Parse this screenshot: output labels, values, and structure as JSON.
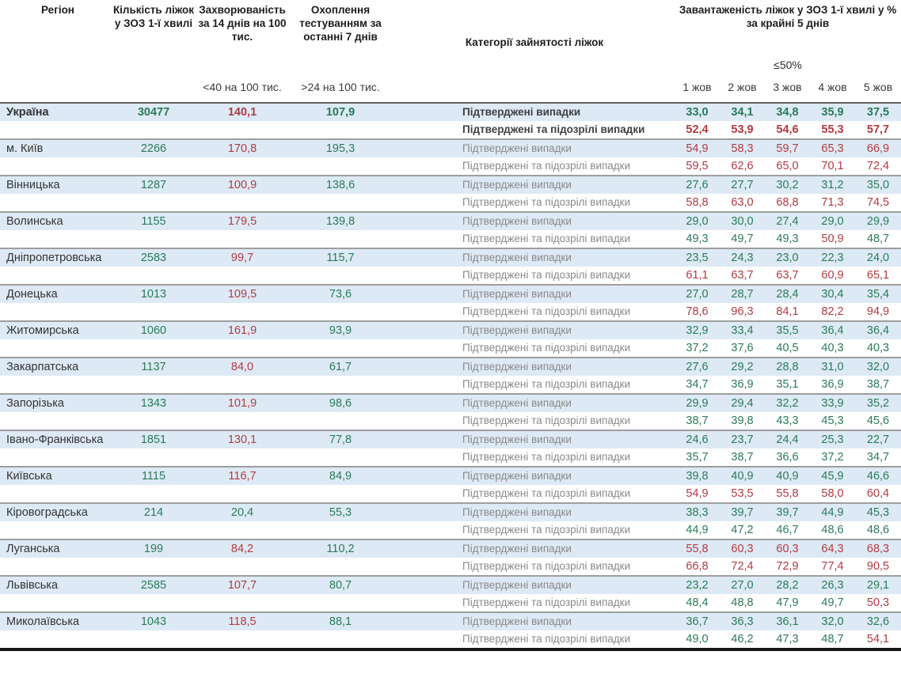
{
  "colors": {
    "green": "#2b7a57",
    "red": "#b23a40",
    "row_stripe_blue": "#ddeaf5"
  },
  "header": {
    "region": "Регіон",
    "beds": "Кількість ліжок у ЗОЗ 1-ї хвилі",
    "incidence": "Захворюваність за 14 днів на 100 тис.",
    "testing": "Охоплення тестуванням за останні 7 днів",
    "categories": "Категорії зайнятості ліжок",
    "load_title": "Завантаженість ліжок у ЗОЗ 1-ї хвилі у % за крайні 5 днів",
    "threshold": "≤50%",
    "incidence_criteria": "<40 на 100 тис.",
    "testing_criteria": ">24 на 100 тис.",
    "dates": [
      "1 жов",
      "2 жов",
      "3 жов",
      "4 жов",
      "5 жов"
    ]
  },
  "row_labels": {
    "confirmed": "Підтверджені випадки",
    "confirmed_suspected": "Підтверджені та підозрілі випадки"
  },
  "rules": {
    "load_red_above_percent": 50,
    "incidence_green_below": 40,
    "testing_green_above": 24
  },
  "chart_data": {
    "type": "table",
    "dates": [
      "1 жов",
      "2 жов",
      "3 жов",
      "4 жов",
      "5 жов"
    ],
    "regions": [
      {
        "name": "Україна",
        "bold": true,
        "beds": "30477",
        "incidence": "140,1",
        "testing": "107,9",
        "confirmed": [
          "33,0",
          "34,1",
          "34,8",
          "35,9",
          "37,5"
        ],
        "confirmed_suspected": [
          "52,4",
          "53,9",
          "54,6",
          "55,3",
          "57,7"
        ]
      },
      {
        "name": "м. Київ",
        "bold": false,
        "beds": "2266",
        "incidence": "170,8",
        "testing": "195,3",
        "confirmed": [
          "54,9",
          "58,3",
          "59,7",
          "65,3",
          "66,9"
        ],
        "confirmed_suspected": [
          "59,5",
          "62,6",
          "65,0",
          "70,1",
          "72,4"
        ]
      },
      {
        "name": "Вінницька",
        "bold": false,
        "beds": "1287",
        "incidence": "100,9",
        "testing": "138,6",
        "confirmed": [
          "27,6",
          "27,7",
          "30,2",
          "31,2",
          "35,0"
        ],
        "confirmed_suspected": [
          "58,8",
          "63,0",
          "68,8",
          "71,3",
          "74,5"
        ]
      },
      {
        "name": "Волинська",
        "bold": false,
        "beds": "1155",
        "incidence": "179,5",
        "testing": "139,8",
        "confirmed": [
          "29,0",
          "30,0",
          "27,4",
          "29,0",
          "29,9"
        ],
        "confirmed_suspected": [
          "49,3",
          "49,7",
          "49,3",
          "50,9",
          "48,7"
        ]
      },
      {
        "name": "Дніпропетровська",
        "bold": false,
        "beds": "2583",
        "incidence": "99,7",
        "testing": "115,7",
        "confirmed": [
          "23,5",
          "24,3",
          "23,0",
          "22,3",
          "24,0"
        ],
        "confirmed_suspected": [
          "61,1",
          "63,7",
          "63,7",
          "60,9",
          "65,1"
        ]
      },
      {
        "name": "Донецька",
        "bold": false,
        "beds": "1013",
        "incidence": "109,5",
        "testing": "73,6",
        "confirmed": [
          "27,0",
          "28,7",
          "28,4",
          "30,4",
          "35,4"
        ],
        "confirmed_suspected": [
          "78,6",
          "96,3",
          "84,1",
          "82,2",
          "94,9"
        ]
      },
      {
        "name": "Житомирська",
        "bold": false,
        "beds": "1060",
        "incidence": "161,9",
        "testing": "93,9",
        "confirmed": [
          "32,9",
          "33,4",
          "35,5",
          "36,4",
          "36,4"
        ],
        "confirmed_suspected": [
          "37,2",
          "37,6",
          "40,5",
          "40,3",
          "40,3"
        ]
      },
      {
        "name": "Закарпатська",
        "bold": false,
        "beds": "1137",
        "incidence": "84,0",
        "testing": "61,7",
        "confirmed": [
          "27,6",
          "29,2",
          "28,8",
          "31,0",
          "32,0"
        ],
        "confirmed_suspected": [
          "34,7",
          "36,9",
          "35,1",
          "36,9",
          "38,7"
        ]
      },
      {
        "name": "Запорізька",
        "bold": false,
        "beds": "1343",
        "incidence": "101,9",
        "testing": "98,6",
        "confirmed": [
          "29,9",
          "29,4",
          "32,2",
          "33,9",
          "35,2"
        ],
        "confirmed_suspected": [
          "38,7",
          "39,8",
          "43,3",
          "45,3",
          "45,6"
        ]
      },
      {
        "name": "Івано-Франківська",
        "bold": false,
        "beds": "1851",
        "incidence": "130,1",
        "testing": "77,8",
        "confirmed": [
          "24,6",
          "23,7",
          "24,4",
          "25,3",
          "22,7"
        ],
        "confirmed_suspected": [
          "35,7",
          "38,7",
          "36,6",
          "37,2",
          "34,7"
        ]
      },
      {
        "name": "Київська",
        "bold": false,
        "beds": "1115",
        "incidence": "116,7",
        "testing": "84,9",
        "confirmed": [
          "39,8",
          "40,9",
          "40,9",
          "45,9",
          "46,6"
        ],
        "confirmed_suspected": [
          "54,9",
          "53,5",
          "55,8",
          "58,0",
          "60,4"
        ]
      },
      {
        "name": "Кіровоградська",
        "bold": false,
        "beds": "214",
        "incidence": "20,4",
        "testing": "55,3",
        "confirmed": [
          "38,3",
          "39,7",
          "39,7",
          "44,9",
          "45,3"
        ],
        "confirmed_suspected": [
          "44,9",
          "47,2",
          "46,7",
          "48,6",
          "48,6"
        ]
      },
      {
        "name": "Луганська",
        "bold": false,
        "beds": "199",
        "incidence": "84,2",
        "testing": "110,2",
        "confirmed": [
          "55,8",
          "60,3",
          "60,3",
          "64,3",
          "68,3"
        ],
        "confirmed_suspected": [
          "66,8",
          "72,4",
          "72,9",
          "77,4",
          "90,5"
        ]
      },
      {
        "name": "Львівська",
        "bold": false,
        "beds": "2585",
        "incidence": "107,7",
        "testing": "80,7",
        "confirmed": [
          "23,2",
          "27,0",
          "28,2",
          "26,3",
          "29,1"
        ],
        "confirmed_suspected": [
          "48,4",
          "48,8",
          "47,9",
          "49,7",
          "50,3"
        ]
      },
      {
        "name": "Миколаївська",
        "bold": false,
        "beds": "1043",
        "incidence": "118,5",
        "testing": "88,1",
        "confirmed": [
          "36,7",
          "36,3",
          "36,1",
          "32,0",
          "32,6"
        ],
        "confirmed_suspected": [
          "49,0",
          "46,2",
          "47,3",
          "48,7",
          "54,1"
        ]
      }
    ]
  }
}
